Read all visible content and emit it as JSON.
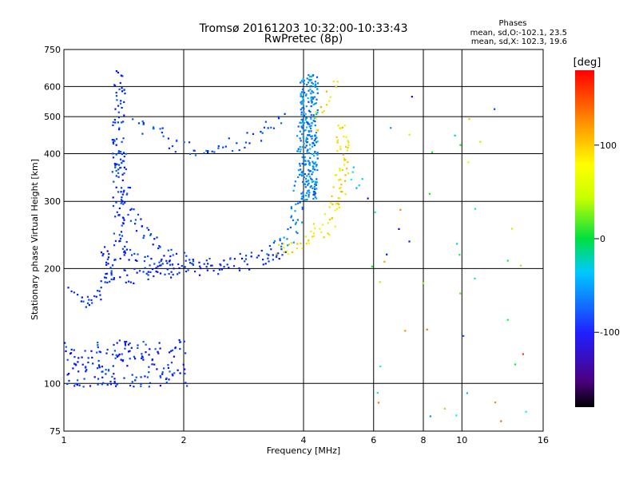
{
  "chart_data": {
    "type": "scatter",
    "title": "Tromsø 20161203 10:32:00-10:33:43",
    "subtitle": "RwPretec (8p)",
    "xlabel": "Frequency [MHz]",
    "ylabel": "Stationary phase Virtual Height [km]",
    "x_scale": "log",
    "y_scale": "log",
    "xlim": [
      1,
      16
    ],
    "ylim": [
      75,
      750
    ],
    "x_ticks": [
      1,
      2,
      4,
      6,
      8,
      10,
      16
    ],
    "y_ticks": [
      75,
      100,
      200,
      300,
      400,
      500,
      600,
      750
    ],
    "grid": true,
    "phase_info": {
      "heading": "Phases",
      "line_o": "mean, sd,O:-102.1, 23.5",
      "line_x": "mean, sd,X: 102.3, 19.6"
    },
    "colorbar": {
      "label": "[deg]",
      "range": [
        -180,
        180
      ],
      "ticks": [
        -100,
        0,
        100
      ]
    },
    "traces": [
      {
        "kind": "curve",
        "phase": -128,
        "spread": 0.1,
        "density": 12,
        "points": [
          [
            1.05,
            173
          ],
          [
            1.12,
            163
          ],
          [
            1.18,
            165
          ],
          [
            1.25,
            178
          ],
          [
            1.3,
            195
          ],
          [
            1.33,
            215
          ]
        ]
      },
      {
        "kind": "curve",
        "phase": -125,
        "spread": 0.35,
        "density": 14,
        "points": [
          [
            1.38,
            640
          ],
          [
            1.38,
            560
          ],
          [
            1.37,
            480
          ],
          [
            1.36,
            400
          ],
          [
            1.36,
            330
          ],
          [
            1.37,
            270
          ],
          [
            1.38,
            240
          ],
          [
            1.4,
            225
          ],
          [
            1.5,
            212
          ],
          [
            1.7,
            205
          ],
          [
            2.0,
            201
          ],
          [
            2.5,
            203
          ],
          [
            3.0,
            210
          ],
          [
            3.4,
            220
          ],
          [
            3.6,
            228
          ]
        ]
      },
      {
        "kind": "curve",
        "phase": -122,
        "spread": 0.25,
        "density": 10,
        "points": [
          [
            1.38,
            420
          ],
          [
            1.42,
            330
          ],
          [
            1.5,
            280
          ],
          [
            1.6,
            245
          ],
          [
            1.8,
            222
          ],
          [
            2.0,
            210
          ],
          [
            2.2,
            204
          ]
        ]
      },
      {
        "kind": "curve",
        "phase": -128,
        "spread": 0.4,
        "density": 12,
        "points": [
          [
            1.25,
            225
          ],
          [
            1.3,
            205
          ],
          [
            1.35,
            193
          ],
          [
            1.5,
            192
          ],
          [
            1.7,
            196
          ],
          [
            1.9,
            200
          ]
        ]
      },
      {
        "kind": "curve",
        "phase": -118,
        "spread": 0.25,
        "density": 8,
        "points": [
          [
            1.5,
            475
          ],
          [
            1.65,
            465
          ],
          [
            1.8,
            445
          ],
          [
            2.0,
            412
          ],
          [
            2.2,
            406
          ],
          [
            2.4,
            412
          ],
          [
            2.7,
            425
          ],
          [
            3.0,
            440
          ],
          [
            3.3,
            470
          ],
          [
            3.6,
            495
          ]
        ]
      },
      {
        "kind": "curve",
        "phase": -100,
        "spread": 0.5,
        "density": 12,
        "points": [
          [
            3.3,
            225
          ],
          [
            3.5,
            235
          ],
          [
            3.7,
            250
          ],
          [
            3.85,
            280
          ],
          [
            3.95,
            330
          ],
          [
            4.0,
            400
          ],
          [
            4.03,
            470
          ],
          [
            4.05,
            560
          ],
          [
            4.08,
            650
          ]
        ]
      },
      {
        "kind": "cloud",
        "phase": -96,
        "spread": 0.0,
        "count": 230,
        "box": [
          3.92,
          4.35,
          300,
          650
        ]
      },
      {
        "kind": "curve",
        "phase": 105,
        "spread": 0.5,
        "density": 14,
        "points": [
          [
            3.5,
            228
          ],
          [
            3.9,
            232
          ],
          [
            4.3,
            245
          ],
          [
            4.6,
            262
          ],
          [
            4.8,
            285
          ],
          [
            4.95,
            330
          ],
          [
            5.0,
            400
          ],
          [
            5.02,
            480
          ]
        ]
      },
      {
        "kind": "curve",
        "phase": 110,
        "spread": 0.3,
        "density": 6,
        "points": [
          [
            4.3,
            460
          ],
          [
            4.5,
            520
          ],
          [
            4.7,
            580
          ],
          [
            4.9,
            640
          ]
        ]
      },
      {
        "kind": "curve",
        "phase": -72,
        "spread": 0.3,
        "density": 6,
        "points": [
          [
            5.2,
            360
          ],
          [
            5.4,
            345
          ],
          [
            5.6,
            335
          ],
          [
            5.8,
            330
          ]
        ]
      },
      {
        "kind": "cloud",
        "phase": -128,
        "spread": 0.0,
        "count": 180,
        "box": [
          1.0,
          2.05,
          98,
          130
        ]
      },
      {
        "kind": "sparse",
        "phase": 60,
        "spread": 0.0,
        "count": 45,
        "box": [
          5.8,
          15,
          78,
          620
        ]
      }
    ]
  }
}
